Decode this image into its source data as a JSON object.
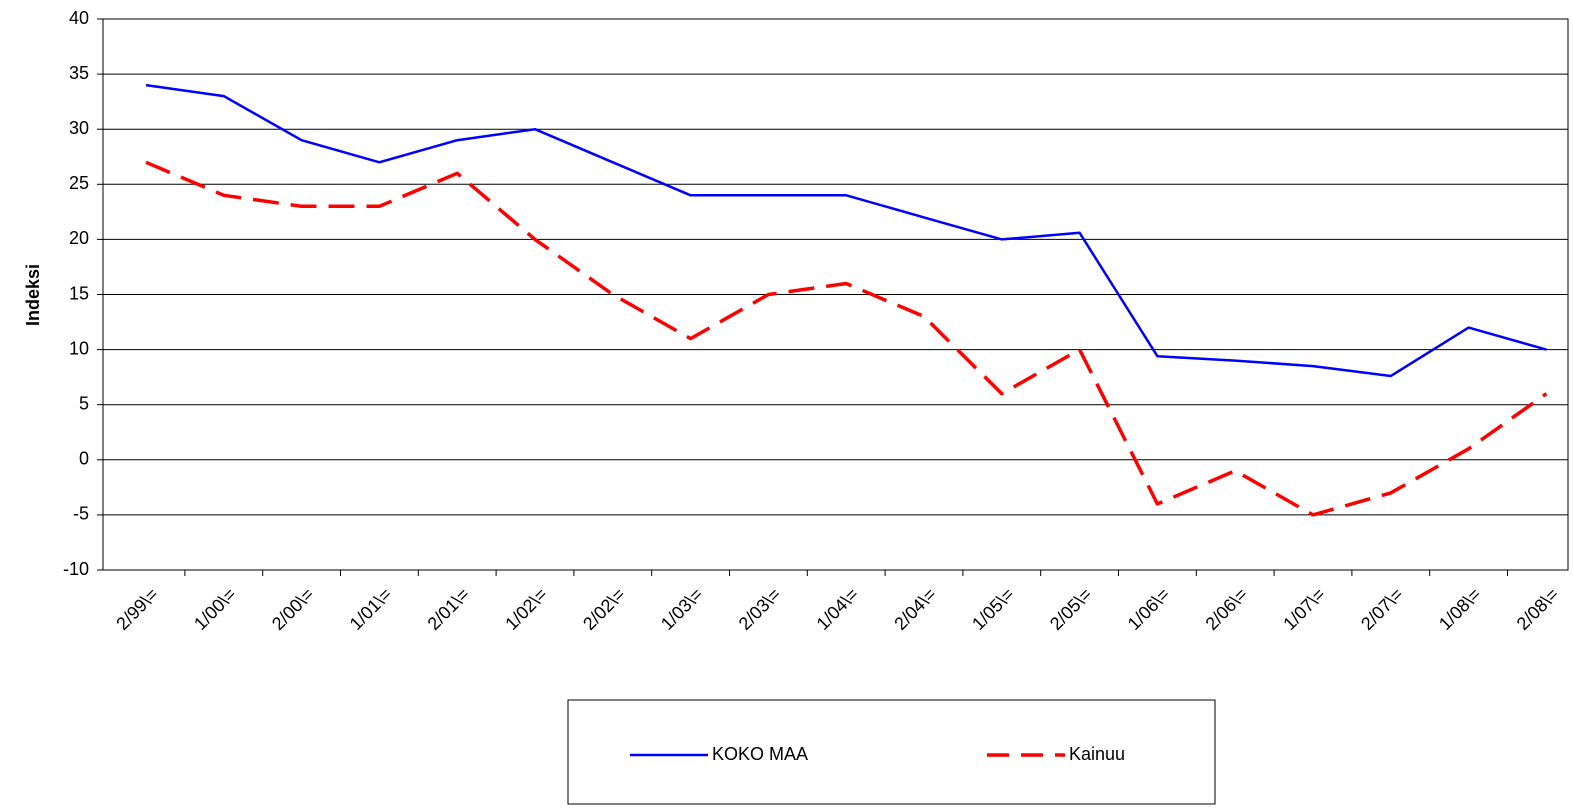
{
  "chart_data": {
    "type": "line",
    "y_label": "Indeksi",
    "categories": [
      "2/99\\=",
      "1/00\\=",
      "2/00\\=",
      "1/01\\=",
      "2/01\\=",
      "1/02\\=",
      "2/02\\=",
      "1/03\\=",
      "2/03\\=",
      "1/04\\=",
      "2/04\\=",
      "1/05\\=",
      "2/05\\=",
      "1/06\\=",
      "2/06\\=",
      "1/07\\=",
      "2/07\\=",
      "1/08\\=",
      "2/08\\="
    ],
    "series": [
      {
        "name": "KOKO MAA",
        "color": "#0000ff",
        "dashed": false,
        "values": [
          34,
          33,
          29,
          27,
          29,
          30,
          27,
          24,
          24,
          24,
          22,
          20,
          20.6,
          9.4,
          9,
          8.5,
          7.6,
          12,
          10
        ]
      },
      {
        "name": "Kainuu",
        "color": "#ff0000",
        "dashed": true,
        "values": [
          27,
          24,
          23,
          23,
          26,
          20,
          15,
          11,
          15,
          16,
          13,
          6,
          10,
          -4,
          -1,
          -5,
          -3,
          1,
          6
        ]
      }
    ],
    "ylim": [
      -10,
      40
    ],
    "yticks": [
      -10,
      -5,
      0,
      5,
      10,
      15,
      20,
      25,
      30,
      35,
      40
    ],
    "grid": true
  }
}
